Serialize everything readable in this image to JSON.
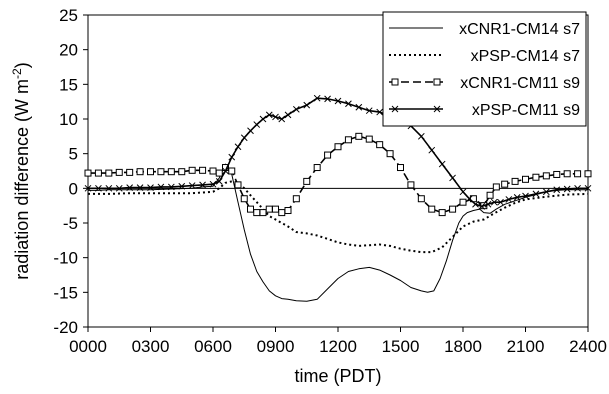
{
  "chart_data": {
    "type": "line",
    "title": "",
    "xlabel": "time (PDT)",
    "ylabel_main": "radiation difference (W m",
    "ylabel_sup": "-2",
    "ylabel_close": ")",
    "xlim": [
      0,
      24
    ],
    "ylim": [
      -20,
      25
    ],
    "yticks": [
      -20,
      -15,
      -10,
      -5,
      0,
      5,
      10,
      15,
      20,
      25
    ],
    "xticks": [
      {
        "v": 0,
        "label": "0000"
      },
      {
        "v": 3,
        "label": "0300"
      },
      {
        "v": 6,
        "label": "0600"
      },
      {
        "v": 9,
        "label": "0900"
      },
      {
        "v": 12,
        "label": "1200"
      },
      {
        "v": 15,
        "label": "1500"
      },
      {
        "v": 18,
        "label": "1800"
      },
      {
        "v": 21,
        "label": "2100"
      },
      {
        "v": 24,
        "label": "2400"
      }
    ],
    "legend_position": "top-right",
    "grid": false,
    "series": [
      {
        "name": "xCNR1-CM14 s7",
        "style": "solid-thin",
        "color": "#000000",
        "x": [
          0,
          0.5,
          1,
          2,
          3,
          4,
          5,
          5.5,
          6,
          6.3,
          6.6,
          6.9,
          7.2,
          7.5,
          7.8,
          8.1,
          8.4,
          8.7,
          9,
          9.3,
          9.6,
          10,
          10.5,
          11,
          11.5,
          12,
          12.5,
          13,
          13.5,
          14,
          14.5,
          15,
          15.5,
          16,
          16.3,
          16.6,
          16.9,
          17.2,
          17.5,
          17.8,
          18,
          18.2,
          18.5,
          18.8,
          19,
          19.3,
          19.6,
          20,
          20.5,
          21,
          21.5,
          22,
          22.5,
          23,
          23.5,
          24
        ],
        "y": [
          -0.3,
          -0.3,
          -0.2,
          -0.2,
          -0.2,
          -0.1,
          0,
          0.2,
          0.3,
          1.5,
          3.5,
          2,
          -2,
          -6,
          -9.5,
          -12,
          -13.5,
          -14.8,
          -15.5,
          -15.9,
          -16,
          -16.2,
          -16.3,
          -16,
          -14.5,
          -13,
          -12,
          -11.6,
          -11.4,
          -11.8,
          -12.5,
          -13.3,
          -14.3,
          -14.8,
          -15,
          -14.8,
          -13,
          -10.5,
          -7.5,
          -5,
          -4,
          -3.5,
          -3.2,
          -3,
          -3.5,
          -3.6,
          -3,
          -2.3,
          -1.8,
          -1.3,
          -0.9,
          -0.5,
          -0.3,
          -0.2,
          -0.2,
          -0.2
        ]
      },
      {
        "name": "xPSP-CM14 s7",
        "style": "dotted",
        "color": "#000000",
        "x": [
          0,
          1,
          2,
          3,
          4,
          5,
          5.5,
          6,
          6.3,
          6.6,
          6.9,
          7.2,
          7.5,
          7.8,
          8.1,
          8.4,
          8.7,
          9,
          9.3,
          9.6,
          10,
          10.5,
          11,
          11.5,
          12,
          12.5,
          13,
          13.5,
          14,
          14.5,
          15,
          15.5,
          16,
          16.5,
          17,
          17.5,
          18,
          18.5,
          19,
          19.5,
          20,
          20.5,
          21,
          22,
          23,
          24
        ],
        "y": [
          -0.8,
          -0.8,
          -0.7,
          -0.7,
          -0.7,
          -0.7,
          -0.6,
          -0.5,
          0,
          0.8,
          1,
          0.8,
          0,
          -1,
          -2,
          -3,
          -4,
          -4.5,
          -5,
          -5.5,
          -6.3,
          -6.5,
          -6.8,
          -7.3,
          -7.8,
          -8.1,
          -8.3,
          -8.2,
          -8.1,
          -8.3,
          -8.7,
          -9,
          -9.2,
          -9.2,
          -8.5,
          -7,
          -5.5,
          -4.8,
          -4.5,
          -3.6,
          -2.8,
          -2.1,
          -1.6,
          -1.2,
          -0.9,
          -0.8
        ]
      },
      {
        "name": "xCNR1-CM11 s9",
        "style": "dashed-square",
        "color": "#000000",
        "x": [
          0,
          0.5,
          1,
          1.5,
          2,
          2.5,
          3,
          3.5,
          4,
          4.5,
          5,
          5.5,
          6,
          6.3,
          6.6,
          6.9,
          7.2,
          7.5,
          7.8,
          8.1,
          8.4,
          8.7,
          9,
          9.3,
          9.6,
          10,
          10.5,
          11,
          11.5,
          12,
          12.5,
          13,
          13.5,
          14,
          14.5,
          15,
          15.5,
          16,
          16.5,
          17,
          17.5,
          18,
          18.5,
          19,
          19.3,
          19.6,
          20,
          20.5,
          21,
          21.5,
          22,
          22.5,
          23,
          23.5,
          24
        ],
        "y": [
          2.2,
          2.2,
          2.2,
          2.3,
          2.3,
          2.4,
          2.4,
          2.4,
          2.4,
          2.4,
          2.6,
          2.6,
          2.5,
          2.2,
          3,
          2.5,
          0.5,
          -1.5,
          -3,
          -3.5,
          -3.5,
          -3,
          -3,
          -3.5,
          -3.2,
          -1.5,
          1,
          3,
          4.8,
          6,
          7,
          7.5,
          7.1,
          6.3,
          5,
          3,
          0.5,
          -1.5,
          -3,
          -3.5,
          -3,
          -2,
          -1.5,
          -2.5,
          -1,
          0.2,
          0.6,
          1,
          1.3,
          1.6,
          1.8,
          2,
          2.1,
          2.1,
          2.1
        ]
      },
      {
        "name": "xPSP-CM11 s9",
        "style": "solid-x",
        "color": "#000000",
        "x": [
          0,
          0.5,
          1,
          1.5,
          2,
          2.5,
          3,
          3.5,
          4,
          4.5,
          5,
          5.5,
          6,
          6.3,
          6.6,
          6.9,
          7.2,
          7.5,
          7.8,
          8.1,
          8.4,
          8.7,
          9,
          9.3,
          9.6,
          10,
          10.5,
          11,
          11.5,
          12,
          12.5,
          13,
          13.5,
          14,
          14.5,
          15,
          15.5,
          16,
          16.5,
          17,
          17.5,
          18,
          18.3,
          18.6,
          18.9,
          19.2,
          19.5,
          19.8,
          20.2,
          20.6,
          21,
          21.5,
          22,
          22.5,
          23,
          23.5,
          24
        ],
        "y": [
          0,
          0,
          0,
          0,
          0.1,
          0.1,
          0.1,
          0.2,
          0.2,
          0.3,
          0.4,
          0.5,
          0.6,
          1,
          2.5,
          4.5,
          6,
          7.3,
          8.3,
          9.2,
          10,
          10.6,
          10.3,
          10,
          10.6,
          11.4,
          12,
          13,
          12.9,
          12.6,
          12.2,
          11.7,
          11.2,
          11,
          10.4,
          9.9,
          9,
          7.5,
          5.5,
          3.5,
          1.5,
          -0.5,
          -1.5,
          -2.3,
          -2.6,
          -2.3,
          -2,
          -2,
          -1.6,
          -1.3,
          -1.1,
          -0.8,
          -0.5,
          -0.2,
          -0.1,
          0,
          0
        ]
      }
    ]
  }
}
